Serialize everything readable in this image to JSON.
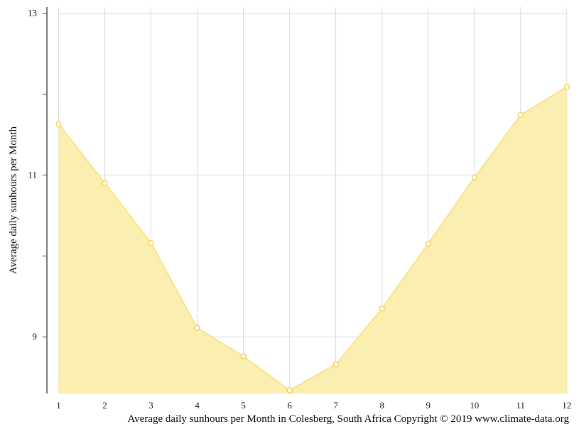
{
  "chart_data": {
    "type": "area",
    "x": [
      1,
      2,
      3,
      4,
      5,
      6,
      7,
      8,
      9,
      10,
      11,
      12
    ],
    "series": [
      {
        "values": [
          11.63,
          10.9,
          10.16,
          9.11,
          8.76,
          8.34,
          8.66,
          9.35,
          10.15,
          10.97,
          11.74,
          12.09
        ]
      }
    ],
    "title": "",
    "xlabel": "",
    "ylabel": "Average daily sunhours per Month",
    "caption": "Average daily sunhours per Month in Colesberg, South Africa Copyright © 2019 www.climate-data.org",
    "xlim": [
      1,
      12
    ],
    "ylim": [
      8.3,
      13
    ],
    "y_tick_labels": [
      9,
      11,
      13
    ],
    "y_minor_ticks": [
      10,
      12
    ],
    "x_tick_labels": [
      1,
      2,
      3,
      4,
      5,
      6,
      7,
      8,
      9,
      10,
      11,
      12
    ],
    "grid": true,
    "legend": "none",
    "colors": {
      "area_fill": "#faeeb0",
      "line": "#f8e48c",
      "marker_stroke": "#f0cd3e",
      "grid": "#dddddd",
      "axis": "#555555"
    }
  }
}
